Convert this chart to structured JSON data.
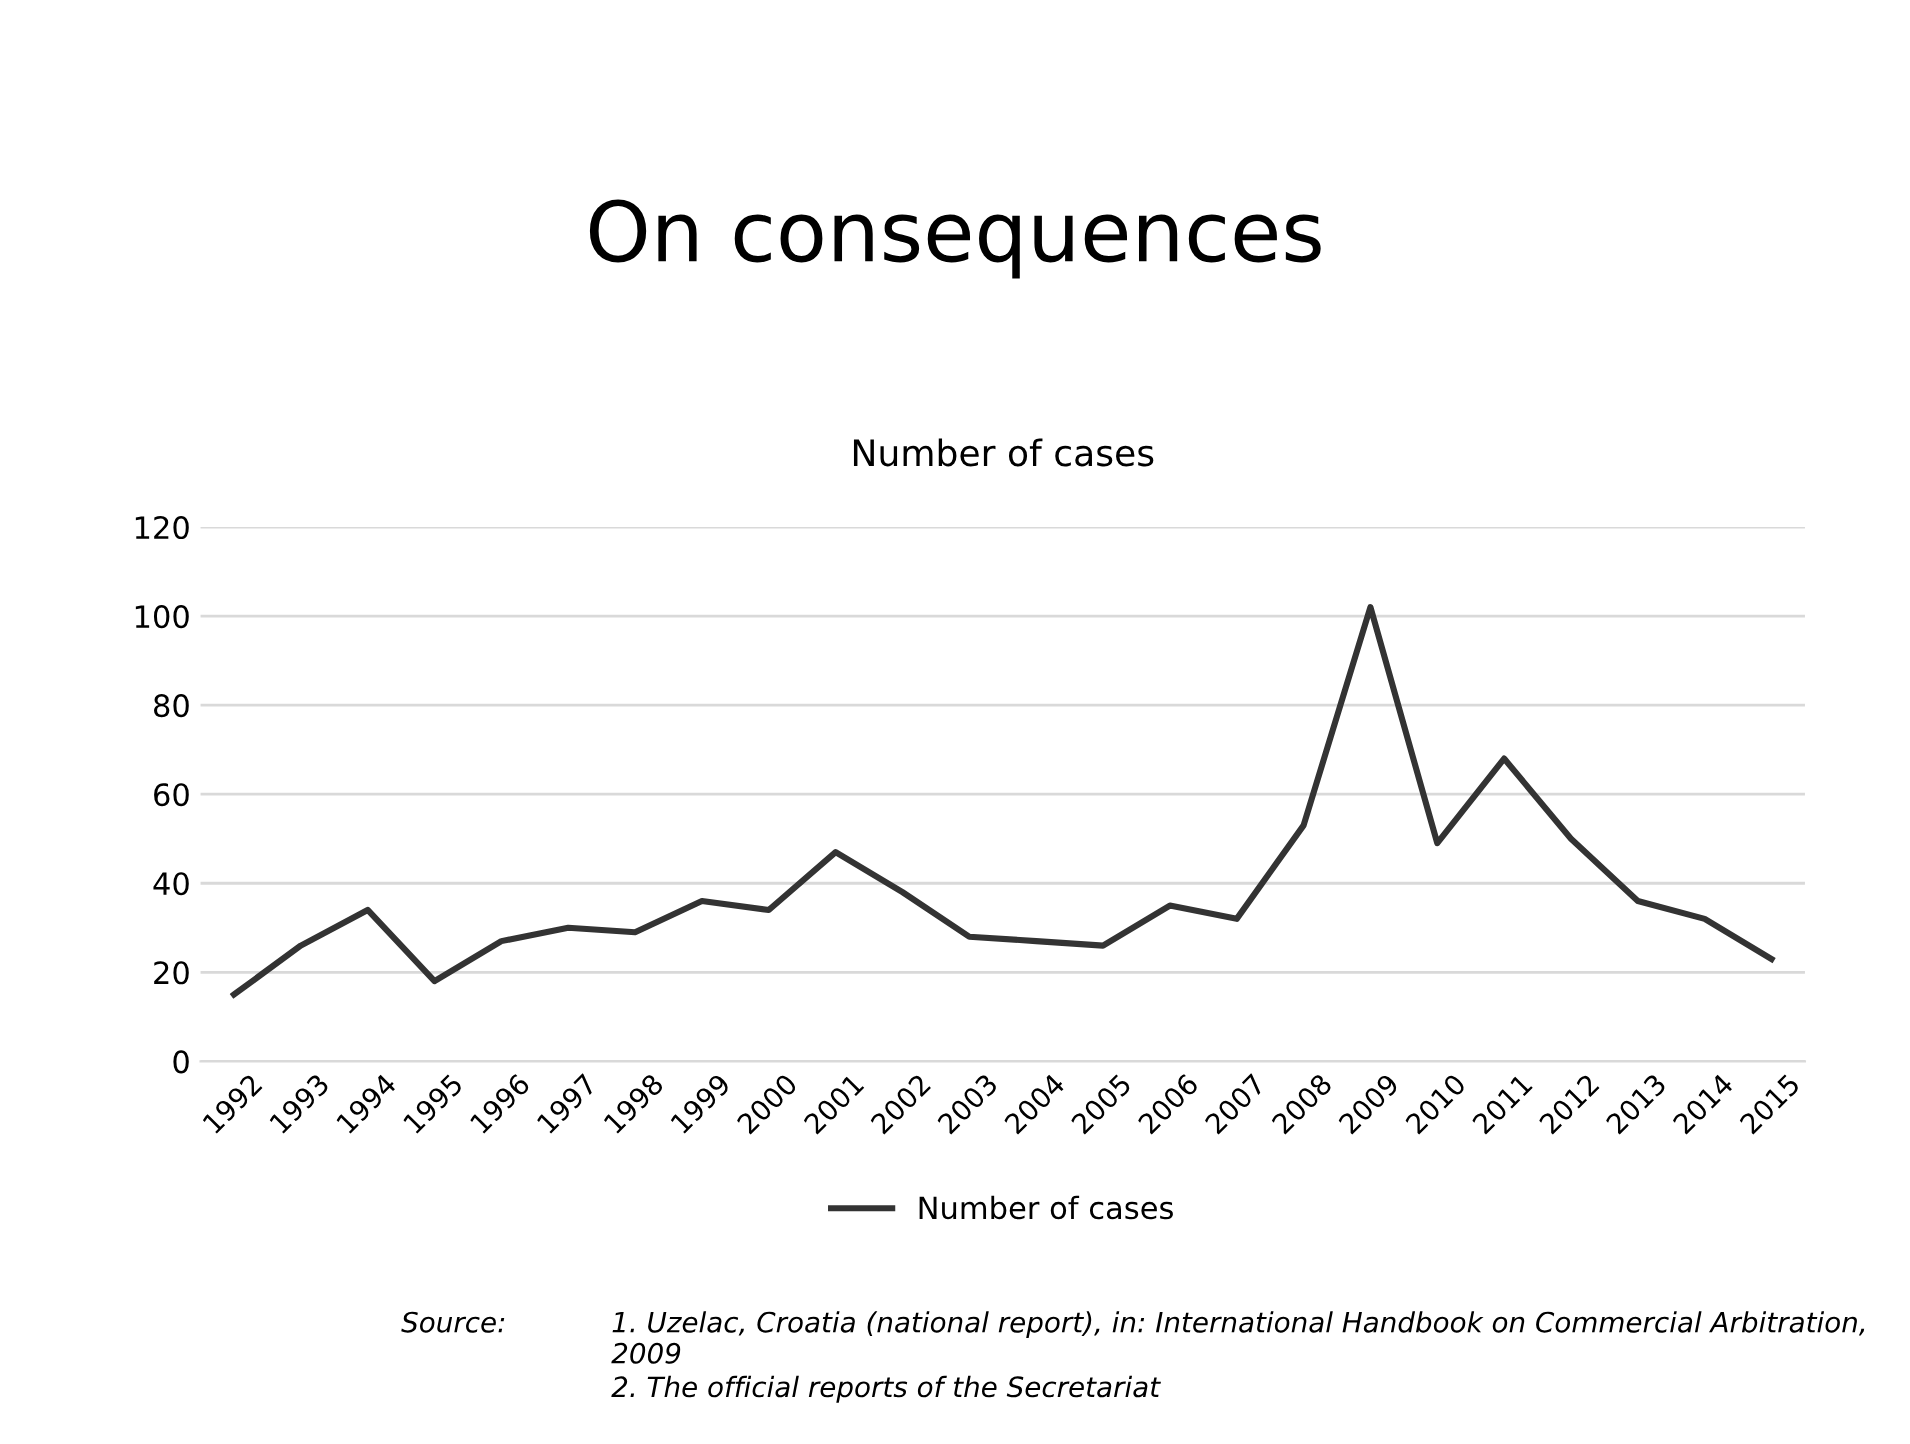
{
  "chart_data": {
    "type": "line",
    "title": "On consequences",
    "subtitle": "Number of cases",
    "categories": [
      "1992",
      "1993",
      "1994",
      "1995",
      "1996",
      "1997",
      "1998",
      "1999",
      "2000",
      "2001",
      "2002",
      "2003",
      "2004",
      "2005",
      "2006",
      "2007",
      "2008",
      "2009",
      "2010",
      "2011",
      "2012",
      "2013",
      "2014",
      "2015"
    ],
    "series": [
      {
        "name": "Number of cases",
        "color": "#333333",
        "values": [
          15,
          26,
          34,
          18,
          27,
          30,
          29,
          36,
          34,
          47,
          38,
          28,
          27,
          26,
          35,
          32,
          53,
          102,
          49,
          68,
          50,
          36,
          32,
          23
        ]
      }
    ],
    "ylim": [
      0,
      120
    ],
    "yticks": [
      0,
      20,
      40,
      60,
      80,
      100,
      120
    ],
    "grid": "y",
    "legend": "bottom",
    "marker": "none",
    "line_style": "solid",
    "annotations": [
      "Source:",
      "1. Uzelac, Croatia (national report), in: International Handbook on Commercial Arbitration, 2009",
      "2. The official reports of the Secretariat"
    ]
  }
}
